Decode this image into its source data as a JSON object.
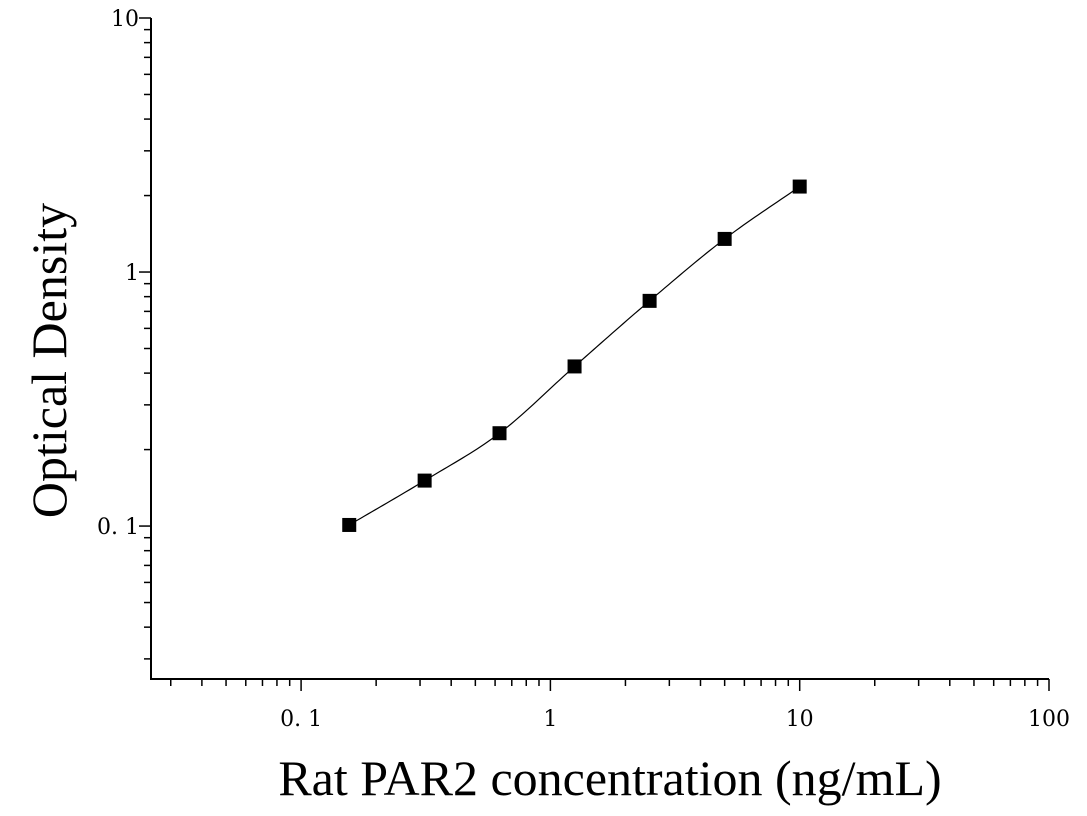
{
  "chart_data": {
    "type": "scatter",
    "title": "",
    "xlabel": "Rat PAR2 concentration (ng/mL)",
    "ylabel": "Optical Density",
    "x_scale": "log",
    "y_scale": "log",
    "xlim": [
      0.025,
      100
    ],
    "ylim": [
      0.025,
      10
    ],
    "x_ticks": [
      0.1,
      1,
      10,
      100
    ],
    "x_tick_labels": [
      "0. 1",
      "1",
      "10",
      "100"
    ],
    "y_ticks": [
      0.1,
      1,
      10
    ],
    "y_tick_labels": [
      "0. 1",
      "1",
      "10"
    ],
    "grid": false,
    "series": [
      {
        "x": [
          0.156,
          0.313,
          0.625,
          1.25,
          2.5,
          5,
          10
        ],
        "y": [
          0.101,
          0.151,
          0.232,
          0.425,
          0.77,
          1.35,
          2.17
        ],
        "marker": "square",
        "color": "#000000",
        "fit_curve": true
      }
    ]
  }
}
